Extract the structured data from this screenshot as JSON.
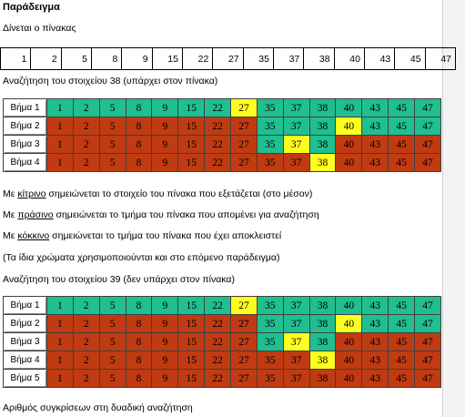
{
  "title": "Παράδειγμα",
  "intro": "Δίνεται ο πίνακας",
  "array": [
    "1",
    "2",
    "5",
    "8",
    "9",
    "15",
    "22",
    "27",
    "35",
    "37",
    "38",
    "40",
    "43",
    "45",
    "47"
  ],
  "search1": {
    "caption": "Αναζήτηση του στοιχείου 38  (υπάρχει στον πίνακα)",
    "rows": [
      {
        "label": "Βήμα 1",
        "colors": [
          "g",
          "g",
          "g",
          "g",
          "g",
          "g",
          "g",
          "y",
          "g",
          "g",
          "g",
          "g",
          "g",
          "g",
          "g"
        ]
      },
      {
        "label": "Βήμα 2",
        "colors": [
          "r",
          "r",
          "r",
          "r",
          "r",
          "r",
          "r",
          "r",
          "g",
          "g",
          "g",
          "y",
          "g",
          "g",
          "g"
        ]
      },
      {
        "label": "Βήμα 3",
        "colors": [
          "r",
          "r",
          "r",
          "r",
          "r",
          "r",
          "r",
          "r",
          "g",
          "y",
          "g",
          "r",
          "r",
          "r",
          "r"
        ]
      },
      {
        "label": "Βήμα 4",
        "colors": [
          "r",
          "r",
          "r",
          "r",
          "r",
          "r",
          "r",
          "r",
          "r",
          "r",
          "y",
          "r",
          "r",
          "r",
          "r"
        ]
      }
    ]
  },
  "legend": {
    "yellow_pre": "Με ",
    "yellow_word": "κίτρινο",
    "yellow_post": " σημειώνεται το στοιχείο του πίνακα που εξετάζεται (στο μέσον)",
    "green_pre": "Με ",
    "green_word": "πράσινο",
    "green_post": " σημειώνεται το τμήμα του πίνακα που απομένει για αναζήτηση",
    "red_pre": "Με ",
    "red_word": "κόκκινο",
    "red_post": " σημειώνεται το τμήμα του πίνακα που έχει αποκλειστεί",
    "note": "(Τα ίδια χρώματα χρησιμοποιούνται και στο επόμενο παράδειγμα)"
  },
  "search2": {
    "caption": "Αναζήτηση του στοιχείου 39 (δεν υπάρχει στον πίνακα)",
    "rows": [
      {
        "label": "Βήμα 1",
        "colors": [
          "g",
          "g",
          "g",
          "g",
          "g",
          "g",
          "g",
          "y",
          "g",
          "g",
          "g",
          "g",
          "g",
          "g",
          "g"
        ]
      },
      {
        "label": "Βήμα 2",
        "colors": [
          "r",
          "r",
          "r",
          "r",
          "r",
          "r",
          "r",
          "r",
          "g",
          "g",
          "g",
          "y",
          "g",
          "g",
          "g"
        ]
      },
      {
        "label": "Βήμα 3",
        "colors": [
          "r",
          "r",
          "r",
          "r",
          "r",
          "r",
          "r",
          "r",
          "g",
          "y",
          "g",
          "r",
          "r",
          "r",
          "r"
        ]
      },
      {
        "label": "Βήμα 4",
        "colors": [
          "r",
          "r",
          "r",
          "r",
          "r",
          "r",
          "r",
          "r",
          "r",
          "r",
          "y",
          "r",
          "r",
          "r",
          "r"
        ]
      },
      {
        "label": "Βήμα 5",
        "colors": [
          "r",
          "r",
          "r",
          "r",
          "r",
          "r",
          "r",
          "r",
          "r",
          "r",
          "r",
          "r",
          "r",
          "r",
          "r"
        ]
      }
    ]
  },
  "footer": "Αριθμός  συγκρίσεων στη δυαδική αναζήτηση",
  "colors": {
    "green": "#1fbf8f",
    "red": "#c03a12",
    "yellow": "#ffff1f"
  }
}
